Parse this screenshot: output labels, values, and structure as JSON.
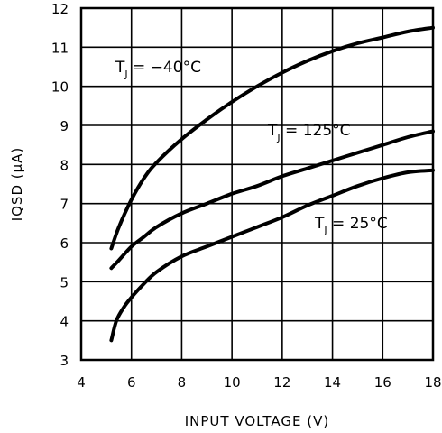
{
  "chart_data": {
    "type": "line",
    "xlabel": "INPUT VOLTAGE (V)",
    "ylabel": "IQSD (μA)",
    "xlim": [
      4,
      18
    ],
    "ylim": [
      3,
      12
    ],
    "xticks": [
      4,
      6,
      8,
      10,
      12,
      14,
      16,
      18
    ],
    "yticks": [
      3,
      4,
      5,
      6,
      7,
      8,
      9,
      10,
      11,
      12
    ],
    "grid": true,
    "series": [
      {
        "name": "TJ = −40°C",
        "label_main": "T",
        "label_sub": "J",
        "label_rest": " = −40°C",
        "x": [
          5.2,
          5.5,
          6.0,
          6.5,
          7.0,
          8.0,
          9.0,
          10.0,
          11.0,
          12.0,
          13.0,
          14.0,
          15.0,
          16.0,
          17.0,
          18.0
        ],
        "y": [
          5.85,
          6.4,
          7.1,
          7.65,
          8.05,
          8.65,
          9.15,
          9.6,
          10.0,
          10.35,
          10.65,
          10.9,
          11.1,
          11.25,
          11.4,
          11.5
        ]
      },
      {
        "name": "TJ = 125°C",
        "label_main": "T",
        "label_sub": "J",
        "label_rest": " = 125°C",
        "x": [
          5.2,
          5.5,
          6.0,
          6.5,
          7.0,
          8.0,
          9.0,
          10.0,
          11.0,
          12.0,
          13.0,
          14.0,
          15.0,
          16.0,
          17.0,
          18.0
        ],
        "y": [
          5.35,
          5.55,
          5.9,
          6.15,
          6.4,
          6.75,
          7.0,
          7.25,
          7.45,
          7.7,
          7.9,
          8.1,
          8.3,
          8.5,
          8.7,
          8.85
        ]
      },
      {
        "name": "TJ = 25°C",
        "label_main": "T",
        "label_sub": "J",
        "label_rest": " = 25°C",
        "x": [
          5.2,
          5.4,
          5.7,
          6.0,
          6.5,
          7.0,
          8.0,
          9.0,
          10.0,
          11.0,
          12.0,
          13.0,
          14.0,
          15.0,
          16.0,
          17.0,
          18.0
        ],
        "y": [
          3.5,
          4.0,
          4.35,
          4.6,
          4.95,
          5.25,
          5.65,
          5.9,
          6.15,
          6.4,
          6.65,
          6.95,
          7.2,
          7.45,
          7.65,
          7.8,
          7.85
        ]
      }
    ]
  }
}
